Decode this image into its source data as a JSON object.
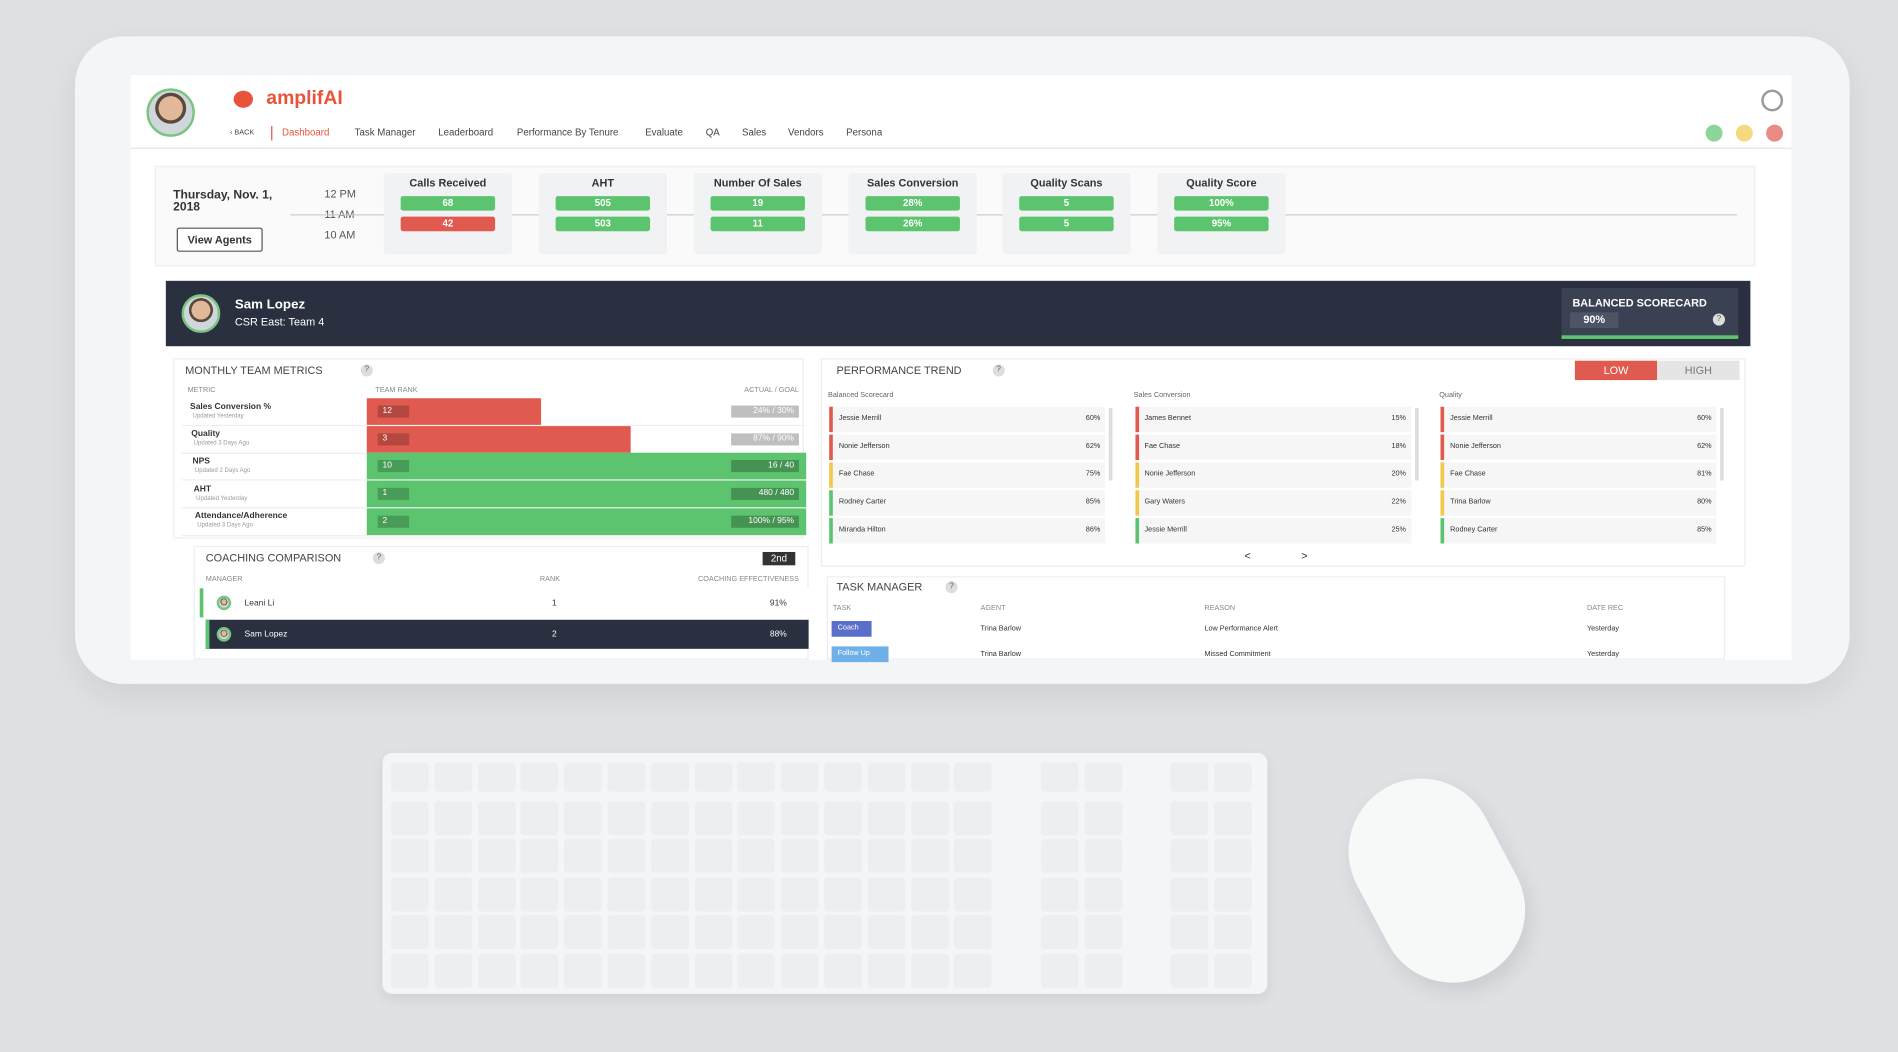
{
  "header": {
    "brand": "amplifAI",
    "nav": [
      "‹ BACK",
      "Dashboard",
      "Task Manager",
      "Leaderboard",
      "Performance By Tenure",
      "Evaluate",
      "QA",
      "Sales",
      "Vendors",
      "Persona"
    ]
  },
  "summary": {
    "date": "Thursday, Nov. 1, 2018",
    "times": [
      "12 PM",
      "11 AM",
      "10 AM"
    ],
    "button": "View Agents",
    "kpis": [
      {
        "title": "Calls Received",
        "values": [
          "68",
          "42"
        ],
        "colors": [
          "#5cc46e",
          "#e05a50"
        ]
      },
      {
        "title": "AHT",
        "values": [
          "505",
          "503"
        ],
        "colors": [
          "#5cc46e",
          "#5cc46e"
        ]
      },
      {
        "title": "Number Of Sales",
        "values": [
          "19",
          "11"
        ],
        "colors": [
          "#5cc46e",
          "#5cc46e"
        ]
      },
      {
        "title": "Sales Conversion",
        "values": [
          "28%",
          "26%"
        ],
        "colors": [
          "#5cc46e",
          "#5cc46e"
        ]
      },
      {
        "title": "Quality Scans",
        "values": [
          "5",
          "5"
        ],
        "colors": [
          "#5cc46e",
          "#5cc46e"
        ]
      },
      {
        "title": "Quality Score",
        "values": [
          "100%",
          "95%"
        ],
        "colors": [
          "#5cc46e",
          "#5cc46e"
        ]
      }
    ]
  },
  "agent": {
    "name": "Sam Lopez",
    "team": "CSR East: Team 4",
    "scorecard_label": "BALANCED SCORECARD",
    "scorecard_value": "90%",
    "help": "?"
  },
  "monthly_metrics": {
    "title": "MONTHLY TEAM METRICS",
    "help": "?",
    "headers": [
      "METRIC",
      "TEAM RANK",
      "ACTUAL / GOAL"
    ],
    "rows": [
      {
        "metric": "Sales Conversion %",
        "updated": "Updated Yesterday",
        "rank": "12",
        "actual_goal": "24% / 30%",
        "color": "#e05a50"
      },
      {
        "metric": "Quality",
        "updated": "Updated 3 Days Ago",
        "rank": "3",
        "actual_goal": "87% / 90%",
        "color": "#e05a50"
      },
      {
        "metric": "NPS",
        "updated": "Updated 2 Days Ago",
        "rank": "10",
        "actual_goal": "16 / 40",
        "color": "#5cc46e"
      },
      {
        "metric": "AHT",
        "updated": "Updated Yesterday",
        "rank": "1",
        "actual_goal": "480 / 480",
        "color": "#5cc46e"
      },
      {
        "metric": "Attendance/Adherence",
        "updated": "Updated 3 Days Ago",
        "rank": "2",
        "actual_goal": "100% / 95%",
        "color": "#5cc46e"
      }
    ]
  },
  "coaching": {
    "title": "COACHING COMPARISON",
    "help": "?",
    "badge": "2nd",
    "headers": [
      "MANAGER",
      "RANK",
      "COACHING EFFECTIVENESS"
    ],
    "rows": [
      {
        "manager": "Leani Li",
        "rank": "1",
        "effectiveness": "91%"
      },
      {
        "manager": "Sam Lopez",
        "rank": "2",
        "effectiveness": "88%"
      }
    ]
  },
  "performance_trend": {
    "title": "PERFORMANCE TREND",
    "help": "?",
    "toggle": [
      "LOW",
      "HIGH"
    ],
    "pager": [
      "<",
      ">"
    ],
    "panels": [
      {
        "title": "Balanced Scorecard",
        "rows": [
          {
            "name": "Jessie Merrill",
            "value": "60%",
            "color": "#e05a50"
          },
          {
            "name": "Nonie Jefferson",
            "value": "62%",
            "color": "#e05a50"
          },
          {
            "name": "Fae Chase",
            "value": "75%",
            "color": "#f0c94a"
          },
          {
            "name": "Rodney Carter",
            "value": "85%",
            "color": "#5cc46e"
          },
          {
            "name": "Miranda Hilton",
            "value": "86%",
            "color": "#5cc46e"
          }
        ]
      },
      {
        "title": "Sales Conversion",
        "rows": [
          {
            "name": "James Bennet",
            "value": "15%",
            "color": "#e05a50"
          },
          {
            "name": "Fae Chase",
            "value": "18%",
            "color": "#e05a50"
          },
          {
            "name": "Nonie Jefferson",
            "value": "20%",
            "color": "#f0c94a"
          },
          {
            "name": "Gary Waters",
            "value": "22%",
            "color": "#f0c94a"
          },
          {
            "name": "Jessie Merrill",
            "value": "25%",
            "color": "#5cc46e"
          }
        ]
      },
      {
        "title": "Quality",
        "rows": [
          {
            "name": "Jessie Merrill",
            "value": "60%",
            "color": "#e05a50"
          },
          {
            "name": "Nonie Jefferson",
            "value": "62%",
            "color": "#e05a50"
          },
          {
            "name": "Fae Chase",
            "value": "81%",
            "color": "#f0c94a"
          },
          {
            "name": "Trina Barlow",
            "value": "80%",
            "color": "#f0c94a"
          },
          {
            "name": "Rodney Carter",
            "value": "85%",
            "color": "#5cc46e"
          }
        ]
      }
    ]
  },
  "task_manager": {
    "title": "TASK MANAGER",
    "help": "?",
    "headers": [
      "TASK",
      "AGENT",
      "REASON",
      "DATE REC"
    ],
    "rows": [
      {
        "task": "Coach",
        "agent": "Trina Barlow",
        "reason": "Low Performance Alert",
        "date": "Yesterday",
        "color": "#5a6fc9"
      },
      {
        "task": "Follow Up",
        "agent": "Trina Barlow",
        "reason": "Missed  Commitment",
        "date": "Yesterday",
        "color": "#6fb0e8"
      }
    ]
  }
}
